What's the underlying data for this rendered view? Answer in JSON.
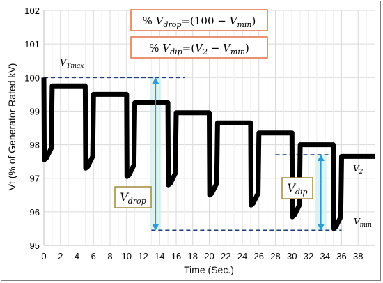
{
  "chart_data": {
    "type": "line",
    "xlabel": "Time (Sec.)",
    "ylabel": "Vt (% of Generator Rated kV)",
    "xlim": [
      0,
      40
    ],
    "ylim": [
      95,
      102
    ],
    "x_ticks": [
      "0",
      "2",
      "4",
      "6",
      "8",
      "10",
      "12",
      "14",
      "16",
      "18",
      "20",
      "22",
      "24",
      "26",
      "28",
      "30",
      "32",
      "34",
      "36",
      "38"
    ],
    "y_ticks": [
      "95",
      "96",
      "97",
      "98",
      "99",
      "100",
      "101",
      "102"
    ],
    "grid": true,
    "series": [
      {
        "color": "#000000",
        "points": [
          [
            0.0,
            100.0
          ],
          [
            0.05,
            97.55
          ],
          [
            0.3,
            97.6
          ],
          [
            0.9,
            97.9
          ],
          [
            1.0,
            99.75
          ],
          [
            5.0,
            99.75
          ],
          [
            5.05,
            97.3
          ],
          [
            5.3,
            97.35
          ],
          [
            5.9,
            97.65
          ],
          [
            6.0,
            99.5
          ],
          [
            10.0,
            99.5
          ],
          [
            10.05,
            97.05
          ],
          [
            10.3,
            97.1
          ],
          [
            10.9,
            97.4
          ],
          [
            11.0,
            99.25
          ],
          [
            15.0,
            99.25
          ],
          [
            15.05,
            96.8
          ],
          [
            15.3,
            96.85
          ],
          [
            15.9,
            97.15
          ],
          [
            16.0,
            98.95
          ],
          [
            20.0,
            98.95
          ],
          [
            20.05,
            96.5
          ],
          [
            20.3,
            96.55
          ],
          [
            20.9,
            96.85
          ],
          [
            21.0,
            98.65
          ],
          [
            25.0,
            98.65
          ],
          [
            25.05,
            96.2
          ],
          [
            25.3,
            96.25
          ],
          [
            25.9,
            96.55
          ],
          [
            26.0,
            98.35
          ],
          [
            30.0,
            98.35
          ],
          [
            30.05,
            95.85
          ],
          [
            30.3,
            95.9
          ],
          [
            30.9,
            96.2
          ],
          [
            31.0,
            98.0
          ],
          [
            35.0,
            98.0
          ],
          [
            35.05,
            95.5
          ],
          [
            35.3,
            95.55
          ],
          [
            35.9,
            95.85
          ],
          [
            36.0,
            97.65
          ],
          [
            40.0,
            97.65
          ]
        ]
      }
    ],
    "reference_lines": {
      "vtmax_level": 100.0,
      "vtmax_x_range": [
        0,
        17
      ],
      "vmin_level": 95.45,
      "vmin_x_range": [
        13,
        36
      ],
      "v2_level": 97.7,
      "v2_x_range": [
        28,
        35
      ]
    },
    "arrows": {
      "vdrop": {
        "x": 13.5,
        "from": 100.0,
        "to": 95.45
      },
      "vdip": {
        "x": 33.5,
        "from": 97.7,
        "to": 95.45
      }
    },
    "annotations": {
      "formula_drop": {
        "pre": "% ",
        "var": "V",
        "sub": "drop",
        "post": "=(100 − ",
        "var2": "V",
        "sub2": "min",
        "end": ")"
      },
      "formula_dip": {
        "pre": "% ",
        "var": "V",
        "sub": "dip",
        "post": "=(",
        "var2": "V",
        "sub2": "2",
        "mid": " − ",
        "var3": "V",
        "sub3": "min",
        "end": ")"
      },
      "vtmax": {
        "var": "V",
        "sub": "Tmax"
      },
      "vdrop": {
        "var": "V",
        "sub": "drop"
      },
      "vdip": {
        "var": "V",
        "sub": "dip"
      },
      "v2": {
        "var": "V",
        "sub": "2"
      },
      "vmin": {
        "var": "V",
        "sub": "min"
      }
    },
    "colors": {
      "line": "#000000",
      "reference": "#1f3b78",
      "arrow": "#2e9ad6",
      "formula_border": "#e07040",
      "label_border": "#a08a3a",
      "highlight": "#cfeef0"
    }
  }
}
